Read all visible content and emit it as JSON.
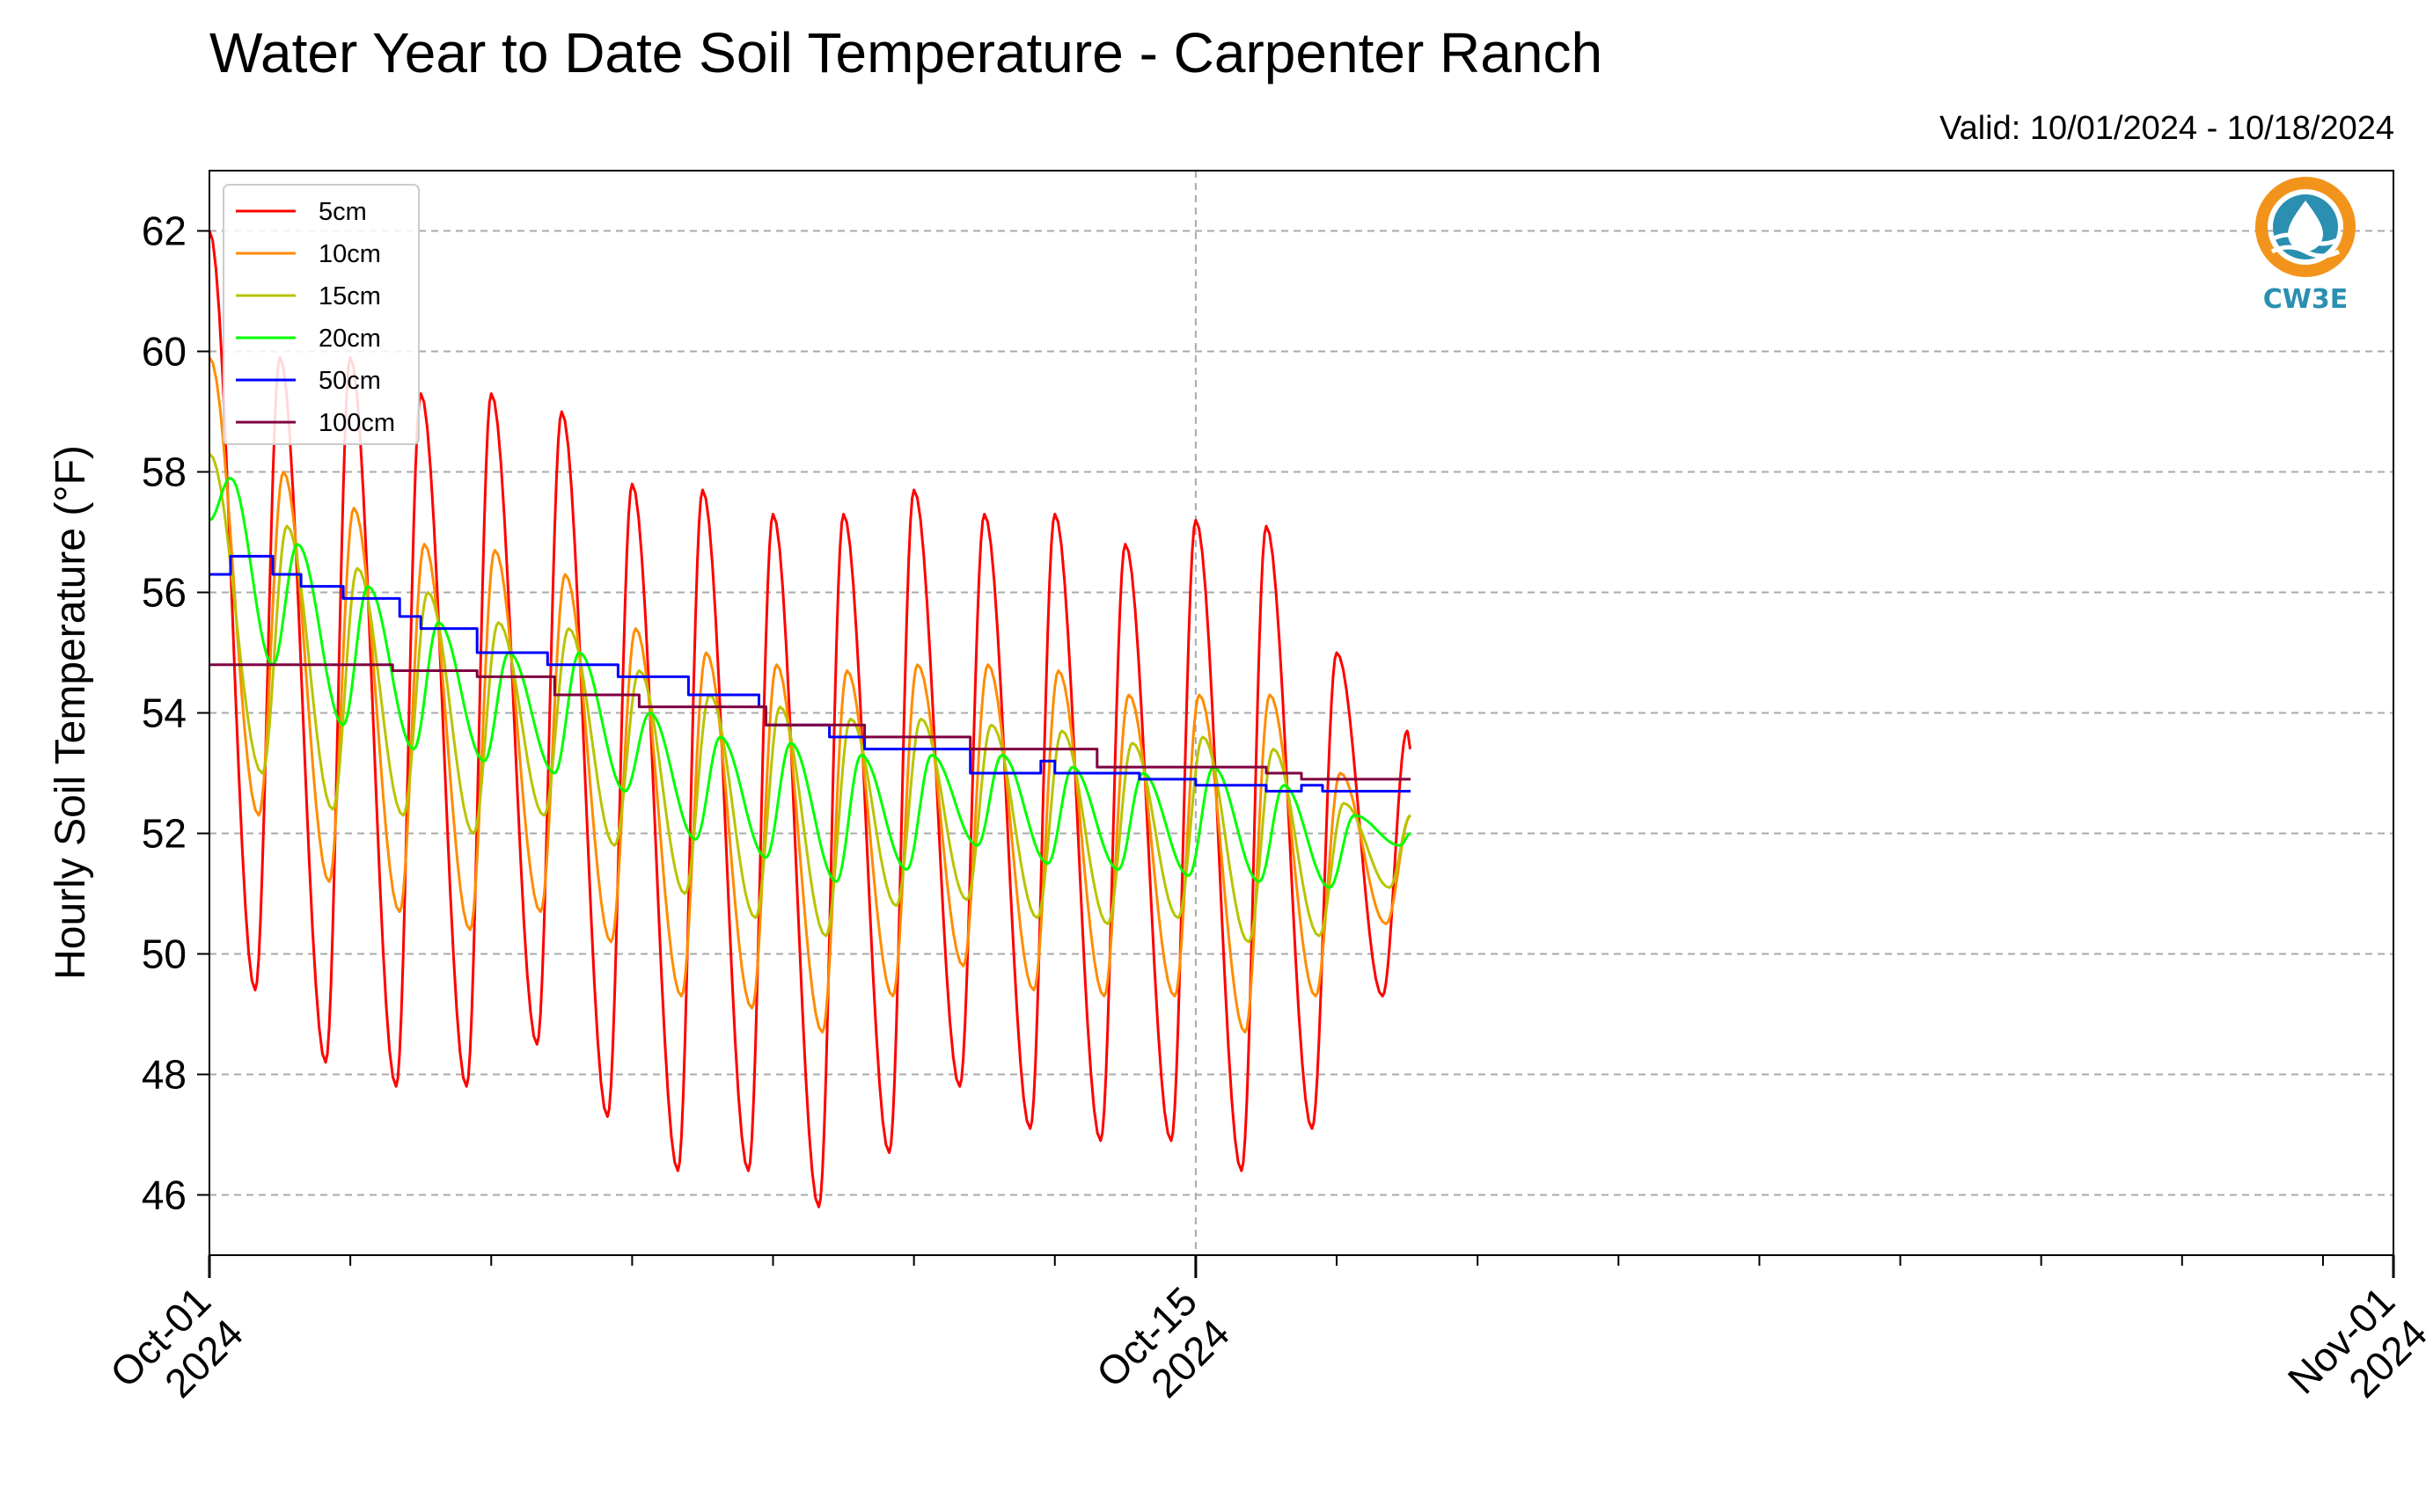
{
  "chart_data": {
    "type": "line",
    "title": "Water Year to Date Soil Temperature - Carpenter Ranch",
    "subtitle": "Valid: 10/01/2024 - 10/18/2024",
    "ylabel": "Hourly Soil Temperature ($^\\circ$F)",
    "ylabel_display": "Hourly Soil Temperature (°F)",
    "xlabel": "",
    "ylim": [
      45,
      63
    ],
    "xlim": [
      "2024-10-01",
      "2024-11-01"
    ],
    "yticks": [
      46,
      48,
      50,
      52,
      54,
      56,
      58,
      60,
      62
    ],
    "ytick_labels": [
      "46",
      "48",
      "50",
      "52",
      "54",
      "56",
      "58",
      "60",
      "62"
    ],
    "xticks": [
      "2024-10-01",
      "2024-10-15",
      "2024-11-01"
    ],
    "xtick_labels": [
      [
        "Oct-01",
        "2024"
      ],
      [
        "Oct-15",
        "2024"
      ],
      [
        "Nov-01",
        "2024"
      ]
    ],
    "grid": true,
    "legend_position": "top-left",
    "logo": {
      "text": "CW3E",
      "color": "#2a8fb0",
      "accent": "#f2941b"
    },
    "series": [
      {
        "name": "5cm",
        "color": "#ff0000",
        "points": [
          [
            0,
            62.0
          ],
          [
            0.65,
            49.4
          ],
          [
            1.0,
            59.9
          ],
          [
            1.65,
            48.2
          ],
          [
            2.0,
            59.9
          ],
          [
            2.65,
            47.8
          ],
          [
            3.0,
            59.3
          ],
          [
            3.65,
            47.8
          ],
          [
            4.0,
            59.3
          ],
          [
            4.65,
            48.5
          ],
          [
            5.0,
            59.0
          ],
          [
            5.65,
            47.3
          ],
          [
            6.0,
            57.8
          ],
          [
            6.65,
            46.4
          ],
          [
            7.0,
            57.7
          ],
          [
            7.65,
            46.4
          ],
          [
            8.0,
            57.3
          ],
          [
            8.65,
            45.8
          ],
          [
            9.0,
            57.3
          ],
          [
            9.65,
            46.7
          ],
          [
            10.0,
            57.7
          ],
          [
            10.65,
            47.8
          ],
          [
            11.0,
            57.3
          ],
          [
            11.65,
            47.1
          ],
          [
            12.0,
            57.3
          ],
          [
            12.65,
            46.9
          ],
          [
            13.0,
            56.8
          ],
          [
            13.65,
            46.9
          ],
          [
            14.0,
            57.2
          ],
          [
            14.65,
            46.4
          ],
          [
            15.0,
            57.1
          ],
          [
            15.65,
            47.1
          ],
          [
            16.0,
            55.0
          ],
          [
            16.65,
            49.3
          ],
          [
            17.0,
            53.7
          ],
          [
            17.05,
            53.4
          ]
        ]
      },
      {
        "name": "10cm",
        "color": "#ff8c00",
        "points": [
          [
            0,
            59.9
          ],
          [
            0.7,
            52.3
          ],
          [
            1.05,
            58.0
          ],
          [
            1.7,
            51.2
          ],
          [
            2.05,
            57.4
          ],
          [
            2.7,
            50.7
          ],
          [
            3.05,
            56.8
          ],
          [
            3.7,
            50.4
          ],
          [
            4.05,
            56.7
          ],
          [
            4.7,
            50.7
          ],
          [
            5.05,
            56.3
          ],
          [
            5.7,
            50.2
          ],
          [
            6.05,
            55.4
          ],
          [
            6.7,
            49.3
          ],
          [
            7.05,
            55.0
          ],
          [
            7.7,
            49.1
          ],
          [
            8.05,
            54.8
          ],
          [
            8.7,
            48.7
          ],
          [
            9.05,
            54.7
          ],
          [
            9.7,
            49.3
          ],
          [
            10.05,
            54.8
          ],
          [
            10.7,
            49.8
          ],
          [
            11.05,
            54.8
          ],
          [
            11.7,
            49.4
          ],
          [
            12.05,
            54.7
          ],
          [
            12.7,
            49.3
          ],
          [
            13.05,
            54.3
          ],
          [
            13.7,
            49.3
          ],
          [
            14.05,
            54.3
          ],
          [
            14.7,
            48.7
          ],
          [
            15.05,
            54.3
          ],
          [
            15.7,
            49.3
          ],
          [
            16.05,
            53.0
          ],
          [
            16.7,
            50.5
          ],
          [
            17.05,
            52.3
          ]
        ]
      },
      {
        "name": "15cm",
        "color": "#b8c400",
        "points": [
          [
            0,
            58.3
          ],
          [
            0.75,
            53.0
          ],
          [
            1.1,
            57.1
          ],
          [
            1.75,
            52.4
          ],
          [
            2.1,
            56.4
          ],
          [
            2.75,
            52.3
          ],
          [
            3.1,
            56.0
          ],
          [
            3.75,
            52.0
          ],
          [
            4.1,
            55.5
          ],
          [
            4.75,
            52.3
          ],
          [
            5.1,
            55.4
          ],
          [
            5.75,
            51.8
          ],
          [
            6.1,
            54.7
          ],
          [
            6.75,
            51.0
          ],
          [
            7.1,
            54.3
          ],
          [
            7.75,
            50.6
          ],
          [
            8.1,
            54.1
          ],
          [
            8.75,
            50.3
          ],
          [
            9.1,
            53.9
          ],
          [
            9.75,
            50.8
          ],
          [
            10.1,
            53.9
          ],
          [
            10.75,
            50.9
          ],
          [
            11.1,
            53.8
          ],
          [
            11.75,
            50.6
          ],
          [
            12.1,
            53.7
          ],
          [
            12.75,
            50.5
          ],
          [
            13.1,
            53.5
          ],
          [
            13.75,
            50.6
          ],
          [
            14.1,
            53.6
          ],
          [
            14.75,
            50.2
          ],
          [
            15.1,
            53.4
          ],
          [
            15.75,
            50.3
          ],
          [
            16.1,
            52.5
          ],
          [
            16.75,
            51.1
          ],
          [
            17.05,
            52.3
          ]
        ]
      },
      {
        "name": "20cm",
        "color": "#00ff00",
        "points": [
          [
            0,
            57.2
          ],
          [
            0.3,
            57.9
          ],
          [
            0.9,
            54.8
          ],
          [
            1.25,
            56.8
          ],
          [
            1.9,
            53.8
          ],
          [
            2.25,
            56.1
          ],
          [
            2.9,
            53.4
          ],
          [
            3.25,
            55.5
          ],
          [
            3.9,
            53.2
          ],
          [
            4.25,
            55.0
          ],
          [
            4.9,
            53.0
          ],
          [
            5.25,
            55.0
          ],
          [
            5.9,
            52.7
          ],
          [
            6.25,
            54.0
          ],
          [
            6.9,
            51.9
          ],
          [
            7.25,
            53.6
          ],
          [
            7.9,
            51.6
          ],
          [
            8.25,
            53.5
          ],
          [
            8.9,
            51.2
          ],
          [
            9.25,
            53.3
          ],
          [
            9.9,
            51.4
          ],
          [
            10.25,
            53.3
          ],
          [
            10.9,
            51.8
          ],
          [
            11.25,
            53.3
          ],
          [
            11.9,
            51.5
          ],
          [
            12.25,
            53.1
          ],
          [
            12.9,
            51.4
          ],
          [
            13.25,
            53.0
          ],
          [
            13.9,
            51.3
          ],
          [
            14.25,
            53.1
          ],
          [
            14.9,
            51.2
          ],
          [
            15.25,
            52.8
          ],
          [
            15.9,
            51.1
          ],
          [
            16.25,
            52.3
          ],
          [
            16.9,
            51.8
          ],
          [
            17.05,
            52.0
          ]
        ]
      },
      {
        "name": "50cm",
        "color": "#0000ff",
        "points": [
          [
            0,
            56.3
          ],
          [
            0.3,
            56.3
          ],
          [
            0.3,
            56.6
          ],
          [
            0.9,
            56.6
          ],
          [
            0.9,
            56.3
          ],
          [
            1.3,
            56.3
          ],
          [
            1.3,
            56.1
          ],
          [
            1.9,
            56.1
          ],
          [
            1.9,
            55.9
          ],
          [
            2.7,
            55.9
          ],
          [
            2.7,
            55.6
          ],
          [
            3.0,
            55.6
          ],
          [
            3.0,
            55.4
          ],
          [
            3.8,
            55.4
          ],
          [
            3.8,
            55.0
          ],
          [
            4.8,
            55.0
          ],
          [
            4.8,
            54.8
          ],
          [
            5.8,
            54.8
          ],
          [
            5.8,
            54.6
          ],
          [
            6.8,
            54.6
          ],
          [
            6.8,
            54.3
          ],
          [
            7.8,
            54.3
          ],
          [
            7.8,
            54.1
          ],
          [
            7.9,
            54.1
          ],
          [
            7.9,
            53.8
          ],
          [
            8.8,
            53.8
          ],
          [
            8.8,
            53.6
          ],
          [
            9.3,
            53.6
          ],
          [
            9.3,
            53.4
          ],
          [
            10.8,
            53.4
          ],
          [
            10.8,
            53.0
          ],
          [
            11.8,
            53.0
          ],
          [
            11.8,
            53.2
          ],
          [
            12.0,
            53.2
          ],
          [
            12.0,
            53.0
          ],
          [
            13.2,
            53.0
          ],
          [
            13.2,
            52.9
          ],
          [
            14.0,
            52.9
          ],
          [
            14.0,
            52.8
          ],
          [
            15.0,
            52.8
          ],
          [
            15.0,
            52.7
          ],
          [
            15.5,
            52.7
          ],
          [
            15.5,
            52.8
          ],
          [
            15.8,
            52.8
          ],
          [
            15.8,
            52.7
          ],
          [
            17.05,
            52.7
          ]
        ]
      },
      {
        "name": "100cm",
        "color": "#7f0040",
        "points": [
          [
            0,
            54.8
          ],
          [
            2.6,
            54.8
          ],
          [
            2.6,
            54.7
          ],
          [
            3.8,
            54.7
          ],
          [
            3.8,
            54.6
          ],
          [
            4.9,
            54.6
          ],
          [
            4.9,
            54.3
          ],
          [
            6.1,
            54.3
          ],
          [
            6.1,
            54.1
          ],
          [
            7.9,
            54.1
          ],
          [
            7.9,
            53.8
          ],
          [
            9.3,
            53.8
          ],
          [
            9.3,
            53.6
          ],
          [
            10.8,
            53.6
          ],
          [
            10.8,
            53.4
          ],
          [
            12.6,
            53.4
          ],
          [
            12.6,
            53.1
          ],
          [
            15.0,
            53.1
          ],
          [
            15.0,
            53.0
          ],
          [
            15.5,
            53.0
          ],
          [
            15.5,
            52.9
          ],
          [
            17.05,
            52.9
          ]
        ]
      }
    ]
  }
}
